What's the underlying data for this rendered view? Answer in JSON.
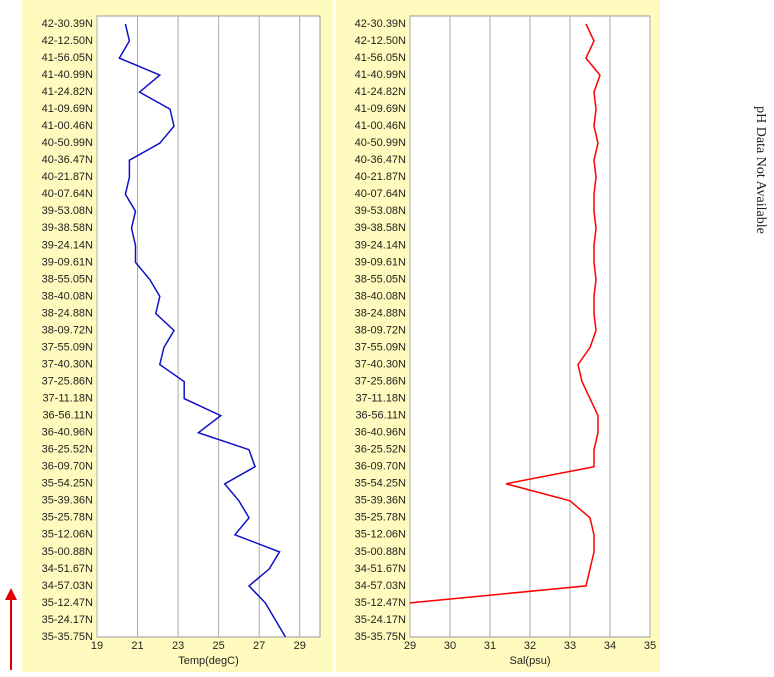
{
  "chart_data": [
    {
      "type": "line",
      "categories": [
        "42-30.39N",
        "42-12.50N",
        "41-56.05N",
        "41-40.99N",
        "41-24.82N",
        "41-09.69N",
        "41-00.46N",
        "40-50.99N",
        "40-36.47N",
        "40-21.87N",
        "40-07.64N",
        "39-53.08N",
        "39-38.58N",
        "39-24.14N",
        "39-09.61N",
        "38-55.05N",
        "38-40.08N",
        "38-24.88N",
        "38-09.72N",
        "37-55.09N",
        "37-40.30N",
        "37-25.86N",
        "37-11.18N",
        "36-56.11N",
        "36-40.96N",
        "36-25.52N",
        "36-09.70N",
        "35-54.25N",
        "35-39.36N",
        "35-25.78N",
        "35-12.06N",
        "35-00.88N",
        "34-51.67N",
        "34-57.03N",
        "35-12.47N",
        "35-24.17N",
        "35-35.75N"
      ],
      "series": [
        {
          "name": "Temp",
          "color": "#1010c8",
          "values": [
            20.4,
            20.6,
            20.1,
            22.1,
            21.1,
            22.6,
            22.8,
            22.1,
            20.6,
            20.6,
            20.4,
            20.9,
            20.7,
            20.9,
            20.9,
            21.6,
            22.1,
            21.9,
            22.8,
            22.3,
            22.1,
            23.3,
            23.3,
            25.1,
            24.0,
            26.5,
            26.8,
            25.3,
            26.0,
            26.5,
            25.8,
            28.0,
            27.5,
            26.5,
            27.3,
            27.8,
            28.3
          ]
        }
      ],
      "x_label": "Temp(degC)",
      "xlim": [
        19,
        30
      ],
      "xticks": [
        19,
        21,
        23,
        25,
        27,
        29
      ],
      "grid": true
    },
    {
      "type": "line",
      "categories": [
        "42-30.39N",
        "42-12.50N",
        "41-56.05N",
        "41-40.99N",
        "41-24.82N",
        "41-09.69N",
        "41-00.46N",
        "40-50.99N",
        "40-36.47N",
        "40-21.87N",
        "40-07.64N",
        "39-53.08N",
        "39-38.58N",
        "39-24.14N",
        "39-09.61N",
        "38-55.05N",
        "38-40.08N",
        "38-24.88N",
        "38-09.72N",
        "37-55.09N",
        "37-40.30N",
        "37-25.86N",
        "37-11.18N",
        "36-56.11N",
        "36-40.96N",
        "36-25.52N",
        "36-09.70N",
        "35-54.25N",
        "35-39.36N",
        "35-25.78N",
        "35-12.06N",
        "35-00.88N",
        "34-51.67N",
        "34-57.03N",
        "35-12.47N",
        "35-24.17N",
        "35-35.75N"
      ],
      "series": [
        {
          "name": "Sal",
          "color": "#ff0000",
          "values": [
            33.4,
            33.6,
            33.4,
            33.75,
            33.6,
            33.65,
            33.6,
            33.7,
            33.6,
            33.65,
            33.6,
            33.6,
            33.65,
            33.6,
            33.6,
            33.65,
            33.6,
            33.6,
            33.65,
            33.5,
            33.2,
            33.3,
            33.5,
            33.7,
            33.7,
            33.6,
            33.6,
            31.4,
            33.0,
            33.5,
            33.6,
            33.6,
            33.5,
            33.4,
            29.0,
            null,
            null
          ]
        }
      ],
      "x_label": "Sal(psu)",
      "xlim": [
        29,
        35
      ],
      "xticks": [
        29,
        30,
        31,
        32,
        33,
        34,
        35
      ],
      "grid": true
    }
  ],
  "note": "pH Data Not Available"
}
